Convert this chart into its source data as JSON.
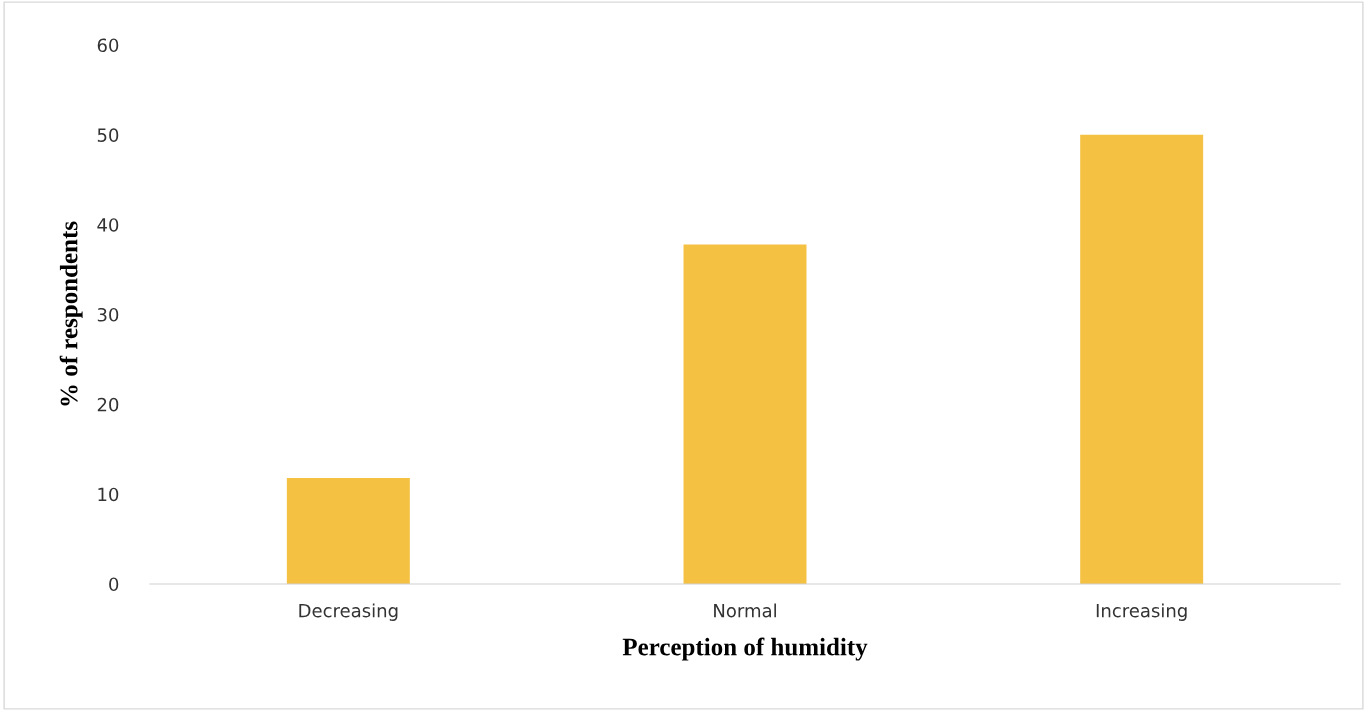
{
  "chart_data": {
    "type": "bar",
    "xlabel": "Perception of humidity",
    "ylabel": "% of respondents",
    "categories": [
      "Decreasing",
      "Normal",
      "Increasing"
    ],
    "values": [
      11.8,
      37.8,
      50.0
    ],
    "color": "#f5c142",
    "ylim": [
      0,
      60
    ],
    "yticks": [
      0,
      10,
      20,
      30,
      40,
      50,
      60
    ],
    "grid": false
  }
}
